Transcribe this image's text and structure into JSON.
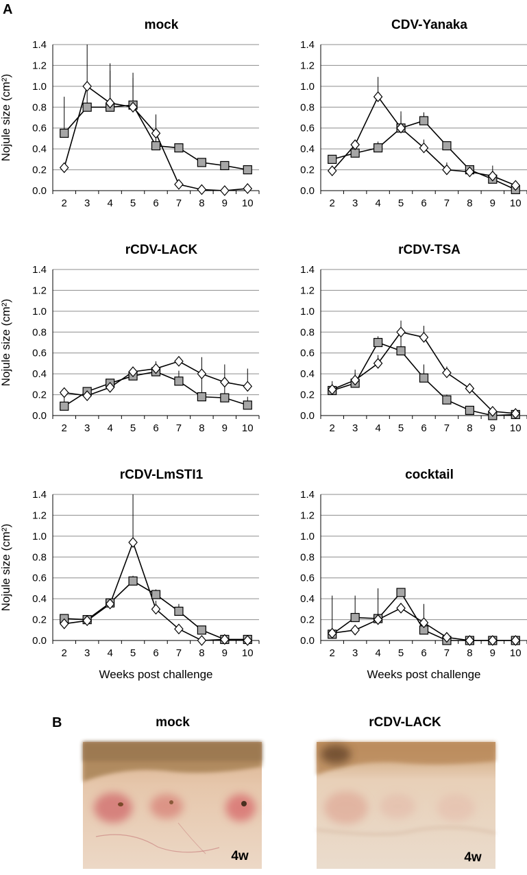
{
  "panel_a_letter": "A",
  "panel_b_letter": "B",
  "chart_data": [
    {
      "type": "line",
      "title": "mock",
      "ylabel": "Nojule size (cm²)",
      "xlabel": "",
      "x": [
        2,
        3,
        4,
        5,
        6,
        7,
        8,
        9,
        10
      ],
      "ylim": [
        0,
        1.4
      ],
      "yticks": [
        "0.0",
        "0.2",
        "0.4",
        "0.6",
        "0.8",
        "1.0",
        "1.2",
        "1.4"
      ],
      "grid": true,
      "series": [
        {
          "marker": "square",
          "values": [
            0.55,
            0.8,
            0.8,
            0.82,
            0.43,
            0.41,
            0.27,
            0.24,
            0.2
          ],
          "err": [
            0.35,
            0.2,
            0.35,
            0.26,
            0.1,
            0,
            0,
            0,
            0
          ]
        },
        {
          "marker": "diamond",
          "values": [
            0.22,
            1.0,
            0.84,
            0.8,
            0.55,
            0.06,
            0.01,
            0.0,
            0.02
          ],
          "err": [
            0,
            0.68,
            0.38,
            0.33,
            0.18,
            0,
            0,
            0,
            0
          ]
        }
      ]
    },
    {
      "type": "line",
      "title": "CDV-Yanaka",
      "ylabel": "",
      "xlabel": "",
      "x": [
        2,
        3,
        4,
        5,
        6,
        7,
        8,
        9,
        10
      ],
      "ylim": [
        0,
        1.4
      ],
      "yticks": [
        "0.0",
        "0.2",
        "0.4",
        "0.6",
        "0.8",
        "1.0",
        "1.2",
        "1.4"
      ],
      "grid": true,
      "series": [
        {
          "marker": "square",
          "values": [
            0.3,
            0.36,
            0.41,
            0.6,
            0.67,
            0.43,
            0.2,
            0.11,
            0.01
          ],
          "err": [
            0,
            0.05,
            0.06,
            0.12,
            0.08,
            0,
            0,
            0,
            0
          ]
        },
        {
          "marker": "diamond",
          "values": [
            0.19,
            0.44,
            0.9,
            0.6,
            0.41,
            0.2,
            0.18,
            0.14,
            0.05
          ],
          "err": [
            0,
            0.04,
            0.19,
            0.16,
            0.08,
            0.07,
            0.05,
            0.1,
            0
          ]
        }
      ]
    },
    {
      "type": "line",
      "title": "rCDV-LACK",
      "ylabel": "Nojule size (cm²)",
      "xlabel": "",
      "x": [
        2,
        3,
        4,
        5,
        6,
        7,
        8,
        9,
        10
      ],
      "ylim": [
        0,
        1.4
      ],
      "yticks": [
        "0.0",
        "0.2",
        "0.4",
        "0.6",
        "0.8",
        "1.0",
        "1.2",
        "1.4"
      ],
      "grid": true,
      "series": [
        {
          "marker": "square",
          "values": [
            0.09,
            0.23,
            0.31,
            0.38,
            0.42,
            0.33,
            0.18,
            0.17,
            0.1
          ],
          "err": [
            0.08,
            0.04,
            0.04,
            0.07,
            0.1,
            0.1,
            0.18,
            0.15,
            0.08
          ]
        },
        {
          "marker": "diamond",
          "values": [
            0.22,
            0.19,
            0.27,
            0.42,
            0.45,
            0.52,
            0.4,
            0.32,
            0.28
          ],
          "err": [
            0,
            0,
            0,
            0,
            0,
            0,
            0.16,
            0.17,
            0.17
          ]
        }
      ]
    },
    {
      "type": "line",
      "title": "rCDV-TSA",
      "ylabel": "",
      "xlabel": "",
      "x": [
        2,
        3,
        4,
        5,
        6,
        7,
        8,
        9,
        10
      ],
      "ylim": [
        0,
        1.4
      ],
      "yticks": [
        "0.0",
        "0.2",
        "0.4",
        "0.6",
        "0.8",
        "1.0",
        "1.2",
        "1.4"
      ],
      "grid": true,
      "series": [
        {
          "marker": "square",
          "values": [
            0.24,
            0.31,
            0.7,
            0.62,
            0.36,
            0.15,
            0.05,
            0.0,
            0.01
          ],
          "err": [
            0.09,
            0.13,
            0.06,
            0.17,
            0.13,
            0.05,
            0,
            0,
            0
          ]
        },
        {
          "marker": "diamond",
          "values": [
            0.25,
            0.34,
            0.5,
            0.8,
            0.75,
            0.41,
            0.26,
            0.04,
            0.02
          ],
          "err": [
            0,
            0.06,
            0.08,
            0.11,
            0.11,
            0.06,
            0.03,
            0,
            0
          ]
        }
      ]
    },
    {
      "type": "line",
      "title": "rCDV-LmSTI1",
      "ylabel": "Nojule size (cm²)",
      "xlabel": "Weeks post challenge",
      "x": [
        2,
        3,
        4,
        5,
        6,
        7,
        8,
        9,
        10
      ],
      "ylim": [
        0,
        1.4
      ],
      "yticks": [
        "0.0",
        "0.2",
        "0.4",
        "0.6",
        "0.8",
        "1.0",
        "1.2",
        "1.4"
      ],
      "grid": true,
      "series": [
        {
          "marker": "square",
          "values": [
            0.21,
            0.2,
            0.36,
            0.57,
            0.44,
            0.28,
            0.1,
            0.01,
            0.01
          ],
          "err": [
            0,
            0,
            0,
            0.05,
            0.05,
            0.07,
            0,
            0,
            0
          ]
        },
        {
          "marker": "diamond",
          "values": [
            0.16,
            0.19,
            0.35,
            0.94,
            0.3,
            0.11,
            0.0,
            0.01,
            0.0
          ],
          "err": [
            0,
            0,
            0,
            0.46,
            0.08,
            0,
            0,
            0,
            0
          ]
        }
      ]
    },
    {
      "type": "line",
      "title": "cocktail",
      "ylabel": "",
      "xlabel": "Weeks post challenge",
      "x": [
        2,
        3,
        4,
        5,
        6,
        7,
        8,
        9,
        10
      ],
      "ylim": [
        0,
        1.4
      ],
      "yticks": [
        "0.0",
        "0.2",
        "0.4",
        "0.6",
        "0.8",
        "1.0",
        "1.2",
        "1.4"
      ],
      "grid": true,
      "series": [
        {
          "marker": "square",
          "values": [
            0.06,
            0.22,
            0.21,
            0.46,
            0.1,
            0.0,
            0.0,
            0.0,
            0.0
          ],
          "err": [
            0.37,
            0.21,
            0.29,
            0,
            0,
            0,
            0,
            0,
            0
          ]
        },
        {
          "marker": "diamond",
          "values": [
            0.07,
            0.1,
            0.2,
            0.31,
            0.17,
            0.03,
            0.0,
            0.0,
            0.0
          ],
          "err": [
            0,
            0,
            0,
            0,
            0.18,
            0,
            0,
            0,
            0
          ]
        }
      ]
    }
  ],
  "photos": [
    {
      "title": "mock",
      "tag": "4w",
      "skin_color": "#e8c4a8",
      "fur_color": "#a07a4c",
      "lesion_color": "#d98282"
    },
    {
      "title": "rCDV-LACK",
      "tag": "4w",
      "skin_color": "#ead2bb",
      "fur_color": "#c09466",
      "lesion_color": "#e0a898"
    }
  ],
  "colors": {
    "square_fill": "#a6a6a6",
    "diamond_fill": "#ffffff",
    "line": "#000000",
    "grid": "#8c8c8c"
  }
}
